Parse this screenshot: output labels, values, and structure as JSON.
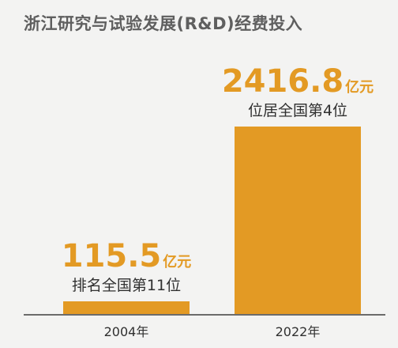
{
  "chart_data": {
    "type": "bar",
    "title": "浙江研究与试验发展(R&D)经费投入",
    "categories": [
      "2004年",
      "2022年"
    ],
    "values": [
      115.5,
      2416.8
    ],
    "value_labels": [
      "115.5",
      "2416.8"
    ],
    "unit": "亿元",
    "annotations": [
      "排名全国第11位",
      "位居全国第4位"
    ],
    "bar_color": "#e39a24",
    "axis_color": "#6b6b6b",
    "background": "#f3f3f2",
    "grid": false,
    "ylim": [
      0,
      2500
    ]
  }
}
